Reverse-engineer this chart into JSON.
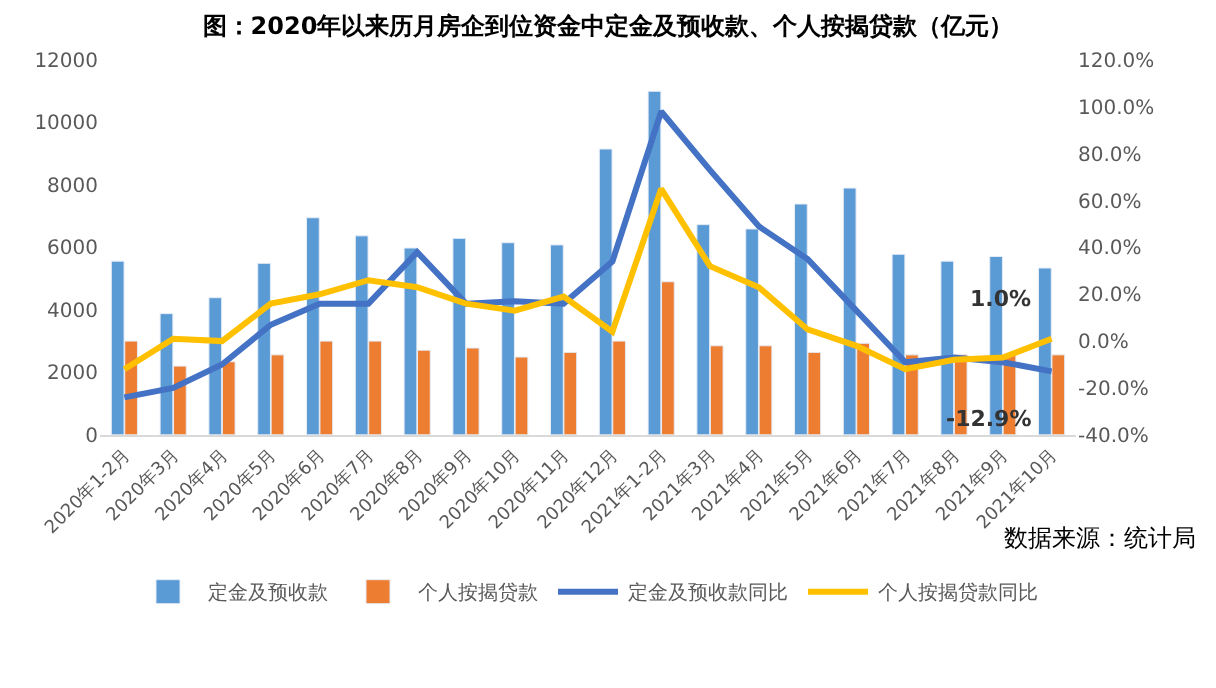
{
  "chart_data": {
    "type": "bar",
    "title": "图：2020年以来历月房企到位资金中定金及预收款、个人按揭贷款（亿元）",
    "categories": [
      "2020年1-2月",
      "2020年3月",
      "2020年4月",
      "2020年5月",
      "2020年6月",
      "2020年7月",
      "2020年8月",
      "2020年9月",
      "2020年10月",
      "2020年11月",
      "2020年12月",
      "2021年1-2月",
      "2021年3月",
      "2021年4月",
      "2021年5月",
      "2021年6月",
      "2021年7月",
      "2021年8月",
      "2021年9月",
      "2021年10月"
    ],
    "series": [
      {
        "name": "定金及预收款",
        "color": "#5b9bd5",
        "values": [
          5560,
          3880,
          4390,
          5490,
          6950,
          6370,
          5980,
          6290,
          6150,
          6080,
          9150,
          11000,
          6730,
          6590,
          7390,
          7900,
          5780,
          5560,
          5710,
          5340
        ]
      },
      {
        "name": "个人按揭贷款",
        "color": "#ed7d31",
        "values": [
          3000,
          2200,
          2340,
          2560,
          3000,
          3000,
          2710,
          2780,
          2490,
          2640,
          3000,
          4900,
          2850,
          2850,
          2640,
          2930,
          2560,
          2560,
          2560,
          2560
        ]
      },
      {
        "name": "定金及预收款同比",
        "type": "line",
        "axis": "y2",
        "color": "#4472c4",
        "values": [
          -24,
          -20,
          -10,
          7,
          16,
          16,
          38,
          16,
          17,
          16,
          34,
          98,
          73,
          49,
          35,
          13,
          -9,
          -7,
          -9,
          -12.9
        ],
        "value_labels": [
          null,
          null,
          null,
          null,
          null,
          null,
          null,
          null,
          null,
          null,
          null,
          null,
          null,
          null,
          null,
          null,
          null,
          null,
          null,
          "-12.9%"
        ]
      },
      {
        "name": "个人按揭贷款同比",
        "type": "line",
        "axis": "y2",
        "color": "#ffc000",
        "values": [
          -12,
          1,
          0,
          16,
          20,
          26,
          23,
          16,
          13,
          19,
          4,
          65,
          32,
          23,
          5,
          -2,
          -12,
          -8,
          -7,
          1.0
        ],
        "value_labels": [
          null,
          null,
          null,
          null,
          null,
          null,
          null,
          null,
          null,
          null,
          null,
          null,
          null,
          null,
          null,
          null,
          null,
          null,
          null,
          "1.0%"
        ]
      }
    ],
    "ylim": [
      0,
      12000
    ],
    "yticks": [
      0,
      2000,
      4000,
      6000,
      8000,
      10000,
      12000
    ],
    "y2lim": [
      -40,
      120
    ],
    "y2ticks": [
      {
        "value": -40,
        "label": "-40.0%"
      },
      {
        "value": -20,
        "label": "-20.0%"
      },
      {
        "value": 0,
        "label": "0.0%"
      },
      {
        "value": 20,
        "label": "20.0%"
      },
      {
        "value": 40,
        "label": "40.0%"
      },
      {
        "value": 60,
        "label": "60.0%"
      },
      {
        "value": 80,
        "label": "80.0%"
      },
      {
        "value": 100,
        "label": "100.0%"
      },
      {
        "value": 120,
        "label": "120.0%"
      }
    ],
    "annotations": [
      "数据来源：统计局"
    ],
    "legend": "bottom",
    "marker": "none",
    "line_style": "solid"
  }
}
